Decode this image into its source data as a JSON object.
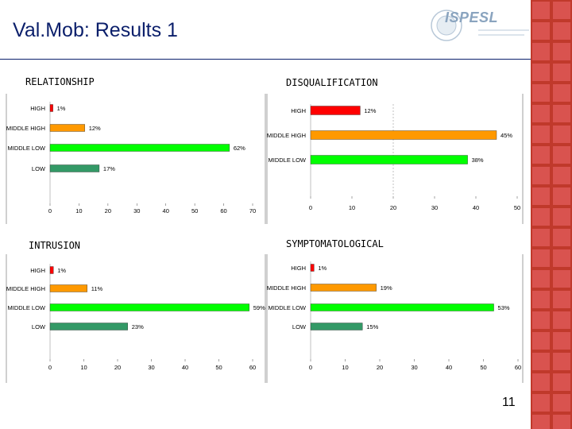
{
  "slide": {
    "title": "Val.Mob: Results 1",
    "page_number": "11"
  },
  "logo": {
    "icon": "ispesl-logo",
    "text": "ISPESL"
  },
  "colors": {
    "title": "#0b1f6b",
    "side_band": "#d9534f",
    "high": "#ff0000",
    "middle_high": "#ff9900",
    "middle_low": "#00ff00",
    "low": "#339966"
  },
  "chart_data": [
    {
      "type": "bar",
      "orientation": "horizontal",
      "title": "RELATIONSHIP",
      "categories": [
        "HIGH",
        "MIDDLE HIGH",
        "MIDDLE LOW",
        "LOW"
      ],
      "values": [
        1,
        12,
        62,
        17
      ],
      "value_labels": [
        "1%",
        "12%",
        "62%",
        "17%"
      ],
      "bar_colors": [
        "#ff0000",
        "#ff9900",
        "#00ff00",
        "#339966"
      ],
      "xlim": [
        0,
        70
      ],
      "xticks": [
        0,
        10,
        20,
        30,
        40,
        50,
        60,
        70
      ],
      "xlabel": "",
      "ylabel": ""
    },
    {
      "type": "bar",
      "orientation": "horizontal",
      "title": "DISQUALIFICATION",
      "categories": [
        "HIGH",
        "MIDDLE HIGH",
        "MIDDLE LOW"
      ],
      "values": [
        12,
        45,
        38
      ],
      "value_labels": [
        "12%",
        "45%",
        "38%"
      ],
      "bar_colors": [
        "#ff0000",
        "#ff9900",
        "#00ff00"
      ],
      "xlim": [
        0,
        50
      ],
      "xticks": [
        0,
        10,
        20,
        30,
        40,
        50
      ],
      "xlabel": "",
      "ylabel": ""
    },
    {
      "type": "bar",
      "orientation": "horizontal",
      "title": "INTRUSION",
      "categories": [
        "HIGH",
        "MIDDLE HIGH",
        "MIDDLE LOW",
        "LOW"
      ],
      "values": [
        1,
        11,
        59,
        23
      ],
      "value_labels": [
        "1%",
        "11%",
        "59%",
        "23%"
      ],
      "bar_colors": [
        "#ff0000",
        "#ff9900",
        "#00ff00",
        "#339966"
      ],
      "xlim": [
        0,
        60
      ],
      "xticks": [
        0,
        10,
        20,
        30,
        40,
        50,
        60
      ],
      "xlabel": "",
      "ylabel": ""
    },
    {
      "type": "bar",
      "orientation": "horizontal",
      "title": "SYMPTOMATOLOGICAL",
      "categories": [
        "HIGH",
        "MIDDLE HIGH",
        "MIDDLE LOW",
        "LOW"
      ],
      "values": [
        1,
        19,
        53,
        15
      ],
      "value_labels": [
        "1%",
        "19%",
        "53%",
        "15%"
      ],
      "bar_colors": [
        "#ff0000",
        "#ff9900",
        "#00ff00",
        "#339966"
      ],
      "xlim": [
        0,
        60
      ],
      "xticks": [
        0,
        10,
        20,
        30,
        40,
        50,
        60
      ],
      "xlabel": "",
      "ylabel": ""
    }
  ]
}
